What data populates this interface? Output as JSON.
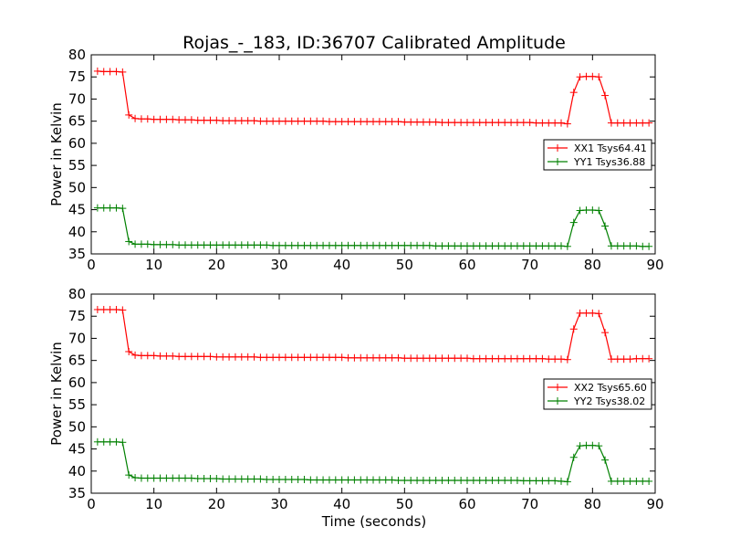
{
  "chart_data": [
    {
      "type": "line",
      "title": "Rojas_-_183, ID:36707 Calibrated Amplitude",
      "xlabel": "",
      "ylabel": "Power in Kelvin",
      "xlim": [
        0,
        90
      ],
      "ylim": [
        35,
        80
      ],
      "xticks": [
        "0",
        "10",
        "20",
        "30",
        "40",
        "50",
        "60",
        "70",
        "80",
        "90"
      ],
      "yticks": [
        "35",
        "40",
        "45",
        "50",
        "55",
        "60",
        "65",
        "70",
        "75",
        "80"
      ],
      "legend_position": "center-right",
      "grid": false,
      "series": [
        {
          "name": "XX1 Tsys64.41",
          "color": "#ff0000",
          "x": [
            1,
            2,
            3,
            4,
            5,
            6,
            7,
            8,
            9,
            10,
            11,
            12,
            13,
            14,
            15,
            16,
            17,
            18,
            19,
            20,
            21,
            22,
            23,
            24,
            25,
            26,
            27,
            28,
            29,
            30,
            31,
            32,
            33,
            34,
            35,
            36,
            37,
            38,
            39,
            40,
            41,
            42,
            43,
            44,
            45,
            46,
            47,
            48,
            49,
            50,
            51,
            52,
            53,
            54,
            55,
            56,
            57,
            58,
            59,
            60,
            61,
            62,
            63,
            64,
            65,
            66,
            67,
            68,
            69,
            70,
            71,
            72,
            73,
            74,
            75,
            76,
            77,
            78,
            79,
            80,
            81,
            82,
            83,
            84,
            85,
            86,
            87,
            88,
            89
          ],
          "y": [
            76.3,
            76.2,
            76.2,
            76.2,
            76.1,
            66.4,
            65.6,
            65.5,
            65.5,
            65.4,
            65.4,
            65.4,
            65.4,
            65.3,
            65.3,
            65.3,
            65.2,
            65.2,
            65.2,
            65.2,
            65.1,
            65.1,
            65.1,
            65.1,
            65.1,
            65.1,
            65.0,
            65.0,
            65.0,
            65.0,
            65.0,
            65.0,
            65.0,
            65.0,
            65.0,
            65.0,
            65.0,
            64.9,
            64.9,
            64.9,
            64.9,
            64.9,
            64.9,
            64.9,
            64.9,
            64.9,
            64.9,
            64.9,
            64.9,
            64.8,
            64.8,
            64.8,
            64.8,
            64.8,
            64.8,
            64.7,
            64.7,
            64.7,
            64.7,
            64.7,
            64.7,
            64.7,
            64.7,
            64.7,
            64.7,
            64.7,
            64.7,
            64.7,
            64.7,
            64.7,
            64.6,
            64.6,
            64.6,
            64.6,
            64.6,
            64.4,
            71.5,
            75.0,
            75.1,
            75.1,
            75.0,
            70.8,
            64.6,
            64.6,
            64.6,
            64.6,
            64.6,
            64.6,
            64.6
          ]
        },
        {
          "name": "YY1 Tsys36.88",
          "color": "#008000",
          "x": [
            1,
            2,
            3,
            4,
            5,
            6,
            7,
            8,
            9,
            10,
            11,
            12,
            13,
            14,
            15,
            16,
            17,
            18,
            19,
            20,
            21,
            22,
            23,
            24,
            25,
            26,
            27,
            28,
            29,
            30,
            31,
            32,
            33,
            34,
            35,
            36,
            37,
            38,
            39,
            40,
            41,
            42,
            43,
            44,
            45,
            46,
            47,
            48,
            49,
            50,
            51,
            52,
            53,
            54,
            55,
            56,
            57,
            58,
            59,
            60,
            61,
            62,
            63,
            64,
            65,
            66,
            67,
            68,
            69,
            70,
            71,
            72,
            73,
            74,
            75,
            76,
            77,
            78,
            79,
            80,
            81,
            82,
            83,
            84,
            85,
            86,
            87,
            88,
            89
          ],
          "y": [
            45.4,
            45.4,
            45.4,
            45.4,
            45.3,
            37.8,
            37.2,
            37.2,
            37.2,
            37.1,
            37.1,
            37.1,
            37.1,
            37.0,
            37.0,
            37.0,
            37.0,
            37.0,
            37.0,
            37.0,
            37.0,
            37.0,
            37.0,
            37.0,
            37.0,
            37.0,
            37.0,
            37.0,
            36.9,
            36.9,
            36.9,
            36.9,
            36.9,
            36.9,
            36.9,
            36.9,
            36.9,
            36.9,
            36.9,
            36.9,
            36.9,
            36.9,
            36.9,
            36.9,
            36.9,
            36.9,
            36.9,
            36.9,
            36.9,
            36.9,
            36.9,
            36.9,
            36.9,
            36.9,
            36.8,
            36.8,
            36.8,
            36.8,
            36.8,
            36.8,
            36.8,
            36.8,
            36.8,
            36.8,
            36.8,
            36.8,
            36.8,
            36.8,
            36.8,
            36.8,
            36.8,
            36.8,
            36.8,
            36.8,
            36.8,
            36.7,
            42.1,
            44.8,
            44.9,
            44.9,
            44.8,
            41.3,
            36.8,
            36.8,
            36.8,
            36.8,
            36.8,
            36.7,
            36.7
          ]
        }
      ]
    },
    {
      "type": "line",
      "title": "",
      "xlabel": "Time (seconds)",
      "ylabel": "Power in Kelvin",
      "xlim": [
        0,
        90
      ],
      "ylim": [
        35,
        80
      ],
      "xticks": [
        "0",
        "10",
        "20",
        "30",
        "40",
        "50",
        "60",
        "70",
        "80",
        "90"
      ],
      "yticks": [
        "35",
        "40",
        "45",
        "50",
        "55",
        "60",
        "65",
        "70",
        "75",
        "80"
      ],
      "legend_position": "center-right",
      "grid": false,
      "series": [
        {
          "name": "XX2 Tsys65.60",
          "color": "#ff0000",
          "x": [
            1,
            2,
            3,
            4,
            5,
            6,
            7,
            8,
            9,
            10,
            11,
            12,
            13,
            14,
            15,
            16,
            17,
            18,
            19,
            20,
            21,
            22,
            23,
            24,
            25,
            26,
            27,
            28,
            29,
            30,
            31,
            32,
            33,
            34,
            35,
            36,
            37,
            38,
            39,
            40,
            41,
            42,
            43,
            44,
            45,
            46,
            47,
            48,
            49,
            50,
            51,
            52,
            53,
            54,
            55,
            56,
            57,
            58,
            59,
            60,
            61,
            62,
            63,
            64,
            65,
            66,
            67,
            68,
            69,
            70,
            71,
            72,
            73,
            74,
            75,
            76,
            77,
            78,
            79,
            80,
            81,
            82,
            83,
            84,
            85,
            86,
            87,
            88,
            89
          ],
          "y": [
            76.5,
            76.5,
            76.5,
            76.5,
            76.4,
            67.0,
            66.2,
            66.1,
            66.1,
            66.1,
            66.0,
            66.0,
            66.0,
            65.9,
            65.9,
            65.9,
            65.9,
            65.9,
            65.9,
            65.8,
            65.8,
            65.8,
            65.8,
            65.8,
            65.8,
            65.8,
            65.7,
            65.7,
            65.7,
            65.7,
            65.7,
            65.7,
            65.7,
            65.7,
            65.7,
            65.7,
            65.7,
            65.7,
            65.7,
            65.7,
            65.6,
            65.6,
            65.6,
            65.6,
            65.6,
            65.6,
            65.6,
            65.6,
            65.6,
            65.5,
            65.5,
            65.5,
            65.5,
            65.5,
            65.5,
            65.5,
            65.5,
            65.5,
            65.5,
            65.5,
            65.4,
            65.4,
            65.4,
            65.4,
            65.4,
            65.4,
            65.4,
            65.4,
            65.4,
            65.4,
            65.4,
            65.4,
            65.3,
            65.3,
            65.3,
            65.2,
            72.1,
            75.7,
            75.7,
            75.7,
            75.6,
            71.3,
            65.3,
            65.3,
            65.3,
            65.3,
            65.4,
            65.4,
            65.4
          ]
        },
        {
          "name": "YY2 Tsys38.02",
          "color": "#008000",
          "x": [
            1,
            2,
            3,
            4,
            5,
            6,
            7,
            8,
            9,
            10,
            11,
            12,
            13,
            14,
            15,
            16,
            17,
            18,
            19,
            20,
            21,
            22,
            23,
            24,
            25,
            26,
            27,
            28,
            29,
            30,
            31,
            32,
            33,
            34,
            35,
            36,
            37,
            38,
            39,
            40,
            41,
            42,
            43,
            44,
            45,
            46,
            47,
            48,
            49,
            50,
            51,
            52,
            53,
            54,
            55,
            56,
            57,
            58,
            59,
            60,
            61,
            62,
            63,
            64,
            65,
            66,
            67,
            68,
            69,
            70,
            71,
            72,
            73,
            74,
            75,
            76,
            77,
            78,
            79,
            80,
            81,
            82,
            83,
            84,
            85,
            86,
            87,
            88,
            89
          ],
          "y": [
            46.6,
            46.6,
            46.6,
            46.6,
            46.5,
            39.1,
            38.5,
            38.4,
            38.4,
            38.4,
            38.4,
            38.4,
            38.4,
            38.4,
            38.4,
            38.4,
            38.3,
            38.3,
            38.3,
            38.3,
            38.2,
            38.2,
            38.2,
            38.2,
            38.2,
            38.2,
            38.2,
            38.1,
            38.1,
            38.1,
            38.1,
            38.1,
            38.1,
            38.1,
            38.0,
            38.0,
            38.0,
            38.0,
            38.0,
            38.0,
            38.0,
            38.0,
            38.0,
            38.0,
            38.0,
            38.0,
            38.0,
            38.0,
            37.9,
            37.9,
            37.9,
            37.9,
            37.9,
            37.9,
            37.9,
            37.9,
            37.9,
            37.9,
            37.9,
            37.9,
            37.9,
            37.9,
            37.9,
            37.9,
            37.9,
            37.9,
            37.9,
            37.9,
            37.8,
            37.8,
            37.8,
            37.8,
            37.8,
            37.8,
            37.7,
            37.6,
            43.1,
            45.7,
            45.8,
            45.8,
            45.7,
            42.5,
            37.7,
            37.7,
            37.7,
            37.7,
            37.7,
            37.7,
            37.7
          ]
        }
      ]
    }
  ]
}
